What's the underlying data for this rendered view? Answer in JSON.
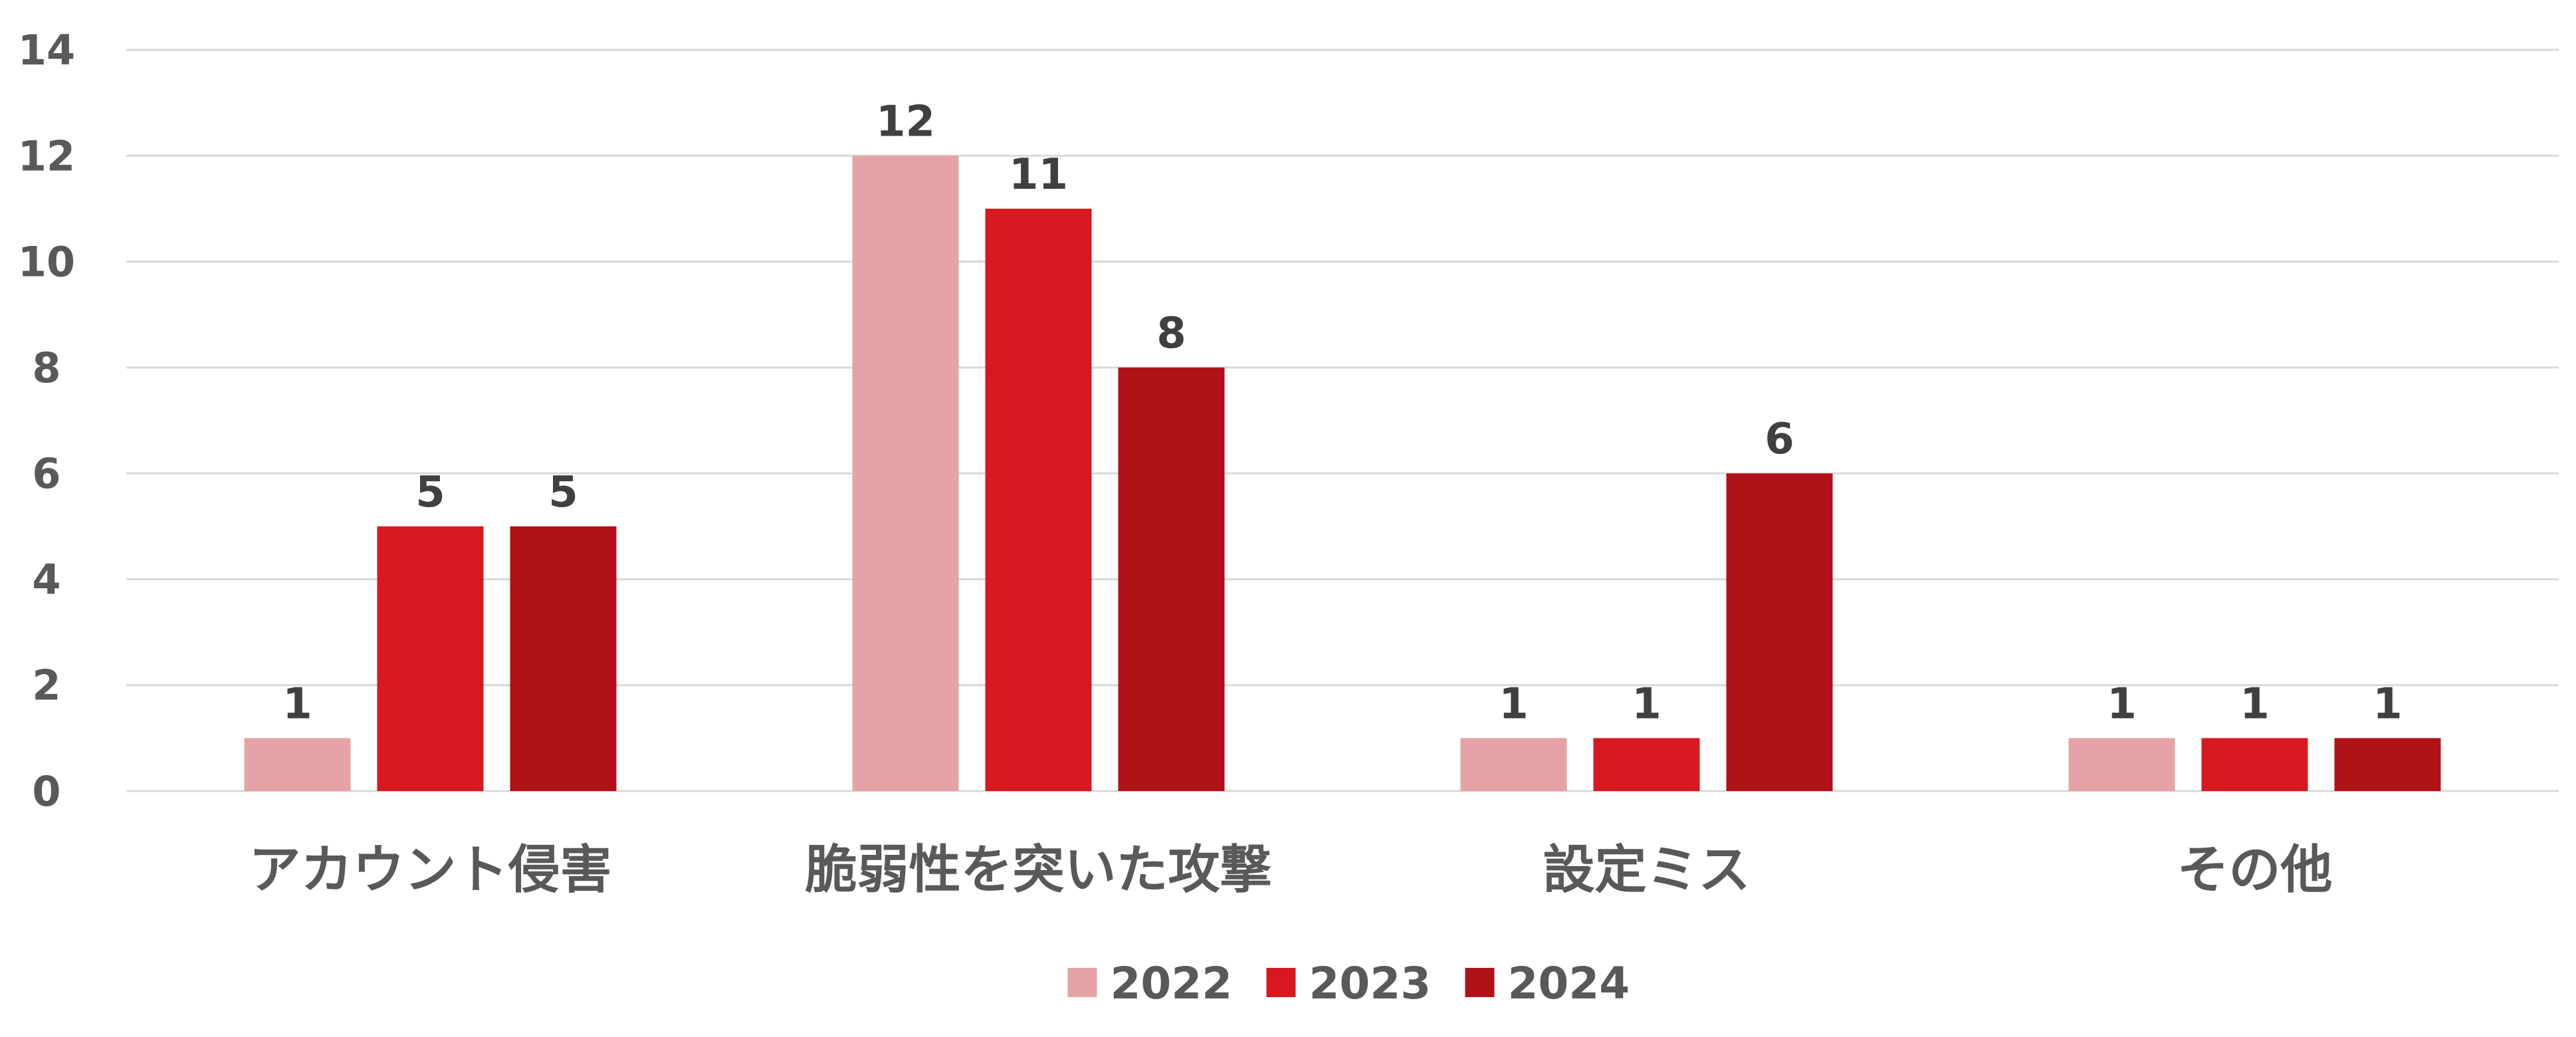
{
  "chart_data": {
    "type": "bar",
    "categories": [
      "アカウント侵害",
      "脆弱性を突いた攻撃",
      "設定ミス",
      "その他"
    ],
    "series": [
      {
        "name": "2022",
        "values": [
          1,
          12,
          1,
          1
        ],
        "color": "#e6a3a5"
      },
      {
        "name": "2023",
        "values": [
          5,
          11,
          1,
          1
        ],
        "color": "#d7181f"
      },
      {
        "name": "2024",
        "values": [
          5,
          8,
          6,
          1
        ],
        "color": "#b01218"
      }
    ],
    "ylim": [
      0,
      14
    ],
    "yticks": [
      0,
      2,
      4,
      6,
      8,
      10,
      12,
      14
    ],
    "grid": true,
    "legend_position": "bottom",
    "data_labels": true
  }
}
